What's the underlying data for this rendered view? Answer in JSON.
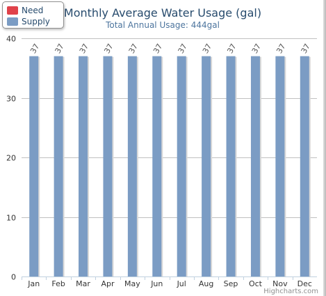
{
  "chart_data": {
    "type": "bar",
    "title": "Monthly Average Water Usage (gal)",
    "subtitle": "Total Annual Usage: 444gal",
    "categories": [
      "Jan",
      "Feb",
      "Mar",
      "Apr",
      "May",
      "Jun",
      "Jul",
      "Aug",
      "Sep",
      "Oct",
      "Nov",
      "Dec"
    ],
    "series": [
      {
        "name": "Need",
        "color": "#e0424a",
        "values": [
          0,
          0,
          0,
          0,
          0,
          0,
          0,
          0,
          0,
          0,
          0,
          0
        ]
      },
      {
        "name": "Supply",
        "color": "#7b9cc4",
        "values": [
          37,
          37,
          37,
          37,
          37,
          37,
          37,
          37,
          37,
          37,
          37,
          37
        ]
      }
    ],
    "data_labels": [
      "37",
      "37",
      "37",
      "37",
      "37",
      "37",
      "37",
      "37",
      "37",
      "37",
      "37",
      "37"
    ],
    "ylim": [
      0,
      40
    ],
    "yticks": [
      0,
      10,
      20,
      30,
      40
    ],
    "grid": true,
    "legend_placement": "top-left"
  },
  "credits": "Highcharts.com",
  "colors": {
    "title": "#274b6d",
    "subtitle": "#4d759e",
    "grid": "#c0c0c0",
    "axis_text": "#333333",
    "bar_shadow": "#d8d8d8"
  }
}
